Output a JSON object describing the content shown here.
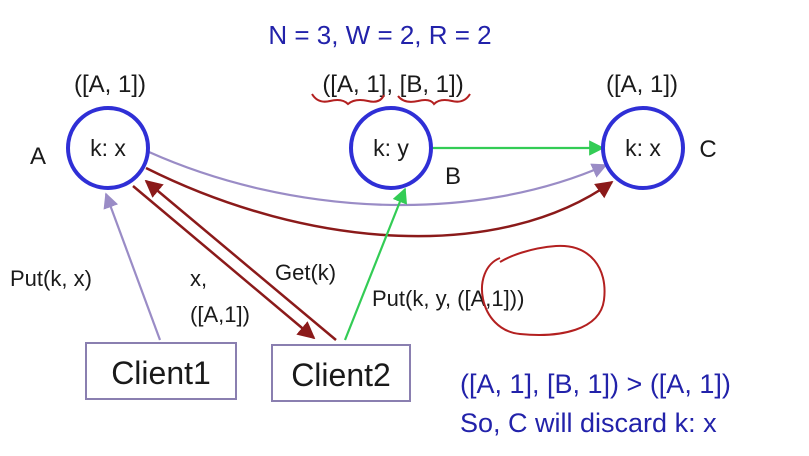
{
  "params": "N = 3, W = 2, R = 2",
  "nodes": {
    "a": {
      "label": "A",
      "content": "k: x",
      "clock": "([A, 1])"
    },
    "b": {
      "label": "B",
      "content": "k: y",
      "clock": "([A, 1], [B, 1])"
    },
    "c": {
      "label": "C",
      "content": "k: x",
      "clock": "([A, 1])"
    }
  },
  "clients": {
    "client1": "Client1",
    "client2": "Client2"
  },
  "edge_labels": {
    "put_kx": "Put(k, x)",
    "reply_line1": "x,",
    "reply_line2": "([A,1])",
    "get_k": "Get(k)",
    "put_ky": "Put(k, y, ([A,1]))"
  },
  "conclusion": {
    "line1": "([A, 1], [B, 1]) > ([A, 1])",
    "line2": "So, C will discard k: x"
  },
  "colors": {
    "node_ring": "#2f2fd6",
    "text_blue": "#2222aa",
    "purple_arrow": "#9a8cc6",
    "green_arrow": "#33cc55",
    "darkred_arrow": "#8b1a1a",
    "annotation_red": "#b32020"
  }
}
